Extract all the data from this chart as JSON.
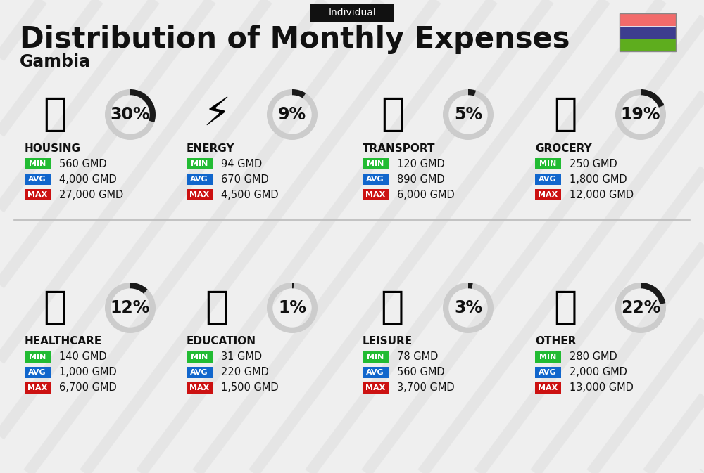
{
  "title": "Distribution of Monthly Expenses",
  "subtitle": "Individual",
  "country": "Gambia",
  "flag_colors": [
    "#F26B6B",
    "#3D3D8F",
    "#5EAD1E"
  ],
  "background_color": "#EFEFEF",
  "categories": [
    {
      "name": "HOUSING",
      "pct": 30,
      "min_val": "560 GMD",
      "avg_val": "4,000 GMD",
      "max_val": "27,000 GMD"
    },
    {
      "name": "ENERGY",
      "pct": 9,
      "min_val": "94 GMD",
      "avg_val": "670 GMD",
      "max_val": "4,500 GMD"
    },
    {
      "name": "TRANSPORT",
      "pct": 5,
      "min_val": "120 GMD",
      "avg_val": "890 GMD",
      "max_val": "6,000 GMD"
    },
    {
      "name": "GROCERY",
      "pct": 19,
      "min_val": "250 GMD",
      "avg_val": "1,800 GMD",
      "max_val": "12,000 GMD"
    },
    {
      "name": "HEALTHCARE",
      "pct": 12,
      "min_val": "140 GMD",
      "avg_val": "1,000 GMD",
      "max_val": "6,700 GMD"
    },
    {
      "name": "EDUCATION",
      "pct": 1,
      "min_val": "31 GMD",
      "avg_val": "220 GMD",
      "max_val": "1,500 GMD"
    },
    {
      "name": "LEISURE",
      "pct": 3,
      "min_val": "78 GMD",
      "avg_val": "560 GMD",
      "max_val": "3,700 GMD"
    },
    {
      "name": "OTHER",
      "pct": 22,
      "min_val": "280 GMD",
      "avg_val": "2,000 GMD",
      "max_val": "13,000 GMD"
    }
  ],
  "min_color": "#22BB33",
  "avg_color": "#1166CC",
  "max_color": "#CC1111",
  "gauge_bg_color": "#CCCCCC",
  "gauge_fg_color": "#1A1A1A",
  "label_color": "#FFFFFF",
  "text_color": "#111111",
  "stripe_color": "#DDDDDD",
  "divider_color": "#BBBBBB",
  "category_fontsize": 11,
  "value_fontsize": 10.5,
  "pct_fontsize": 17,
  "title_fontsize": 30,
  "subtitle_fontsize": 10,
  "country_fontsize": 17,
  "badge_fontsize": 8
}
